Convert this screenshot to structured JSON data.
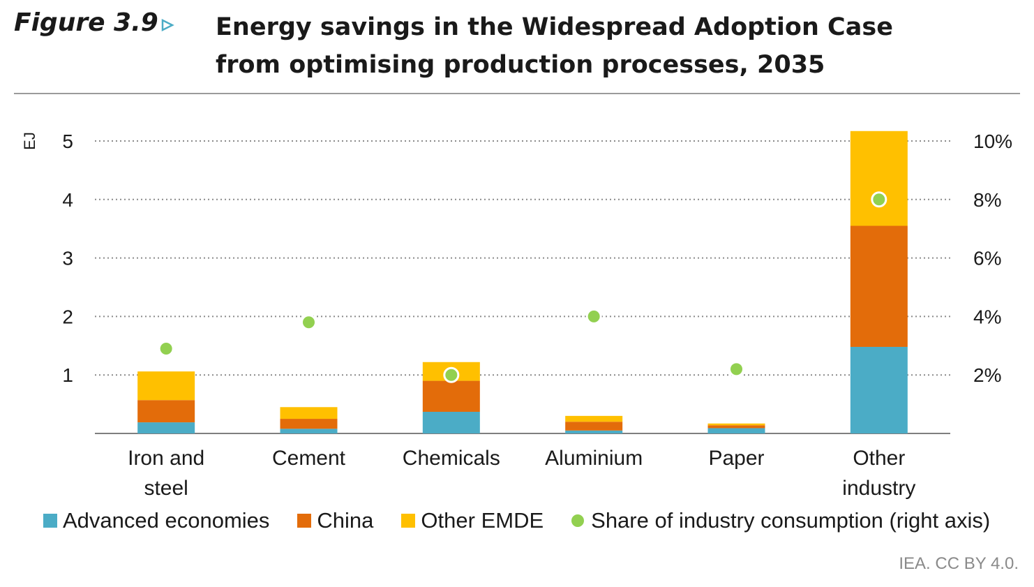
{
  "figure": {
    "label": "Figure 3.9",
    "title": "Energy savings in the Widespread Adoption Case from optimising production processes, 2035"
  },
  "credit": "IEA. CC BY 4.0.",
  "colors": {
    "advanced": "#4BACC6",
    "china": "#E36C0A",
    "other_emde": "#FFC000",
    "share": "#92D050",
    "arrow": "#4BACC6"
  },
  "chart_data": {
    "type": "bar",
    "stacked": true,
    "categories": [
      "Iron and steel",
      "Cement",
      "Chemicals",
      "Aluminium",
      "Paper",
      "Other industry"
    ],
    "category_lines": [
      [
        "Iron and",
        "steel"
      ],
      [
        "Cement"
      ],
      [
        "Chemicals"
      ],
      [
        "Aluminium"
      ],
      [
        "Paper"
      ],
      [
        "Other",
        "industry"
      ]
    ],
    "series": [
      {
        "name": "Advanced economies",
        "color": "#4BACC6",
        "values": [
          0.19,
          0.08,
          0.37,
          0.05,
          0.09,
          1.48
        ]
      },
      {
        "name": "China",
        "color": "#E36C0A",
        "values": [
          0.38,
          0.17,
          0.53,
          0.15,
          0.05,
          2.07
        ]
      },
      {
        "name": "Other EMDE",
        "color": "#FFC000",
        "values": [
          0.49,
          0.2,
          0.32,
          0.1,
          0.03,
          1.62
        ]
      }
    ],
    "line_series": {
      "name": "Share of industry consumption (right axis)",
      "axis": "right",
      "color": "#92D050",
      "values": [
        2.9,
        3.8,
        2.0,
        4.0,
        2.2,
        8.0
      ]
    },
    "ylabel": "EJ",
    "ylim": [
      0,
      5
    ],
    "yticks": [
      1,
      2,
      3,
      4,
      5
    ],
    "y2lim": [
      0,
      10
    ],
    "y2ticks": [
      "2%",
      "4%",
      "6%",
      "8%",
      "10%"
    ],
    "grid": "dotted horizontal",
    "legend_position": "bottom"
  }
}
